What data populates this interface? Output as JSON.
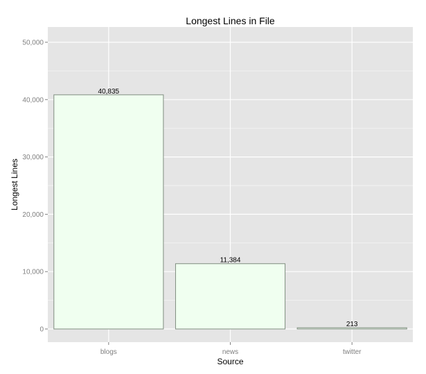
{
  "chart_data": {
    "type": "bar",
    "title": "Longest Lines in File",
    "xlabel": "Source",
    "ylabel": "Longest Lines",
    "categories": [
      "blogs",
      "news",
      "twitter"
    ],
    "values": [
      40835,
      11384,
      213
    ],
    "data_labels": [
      "40,835",
      "11,384",
      "213"
    ],
    "ylim": [
      0,
      52000
    ],
    "y_ticks": [
      0,
      10000,
      20000,
      30000,
      40000,
      50000
    ],
    "y_tick_labels": [
      "0",
      "10,000",
      "20,000",
      "30,000",
      "40,000",
      "50,000"
    ],
    "grid": true,
    "legend": "none",
    "colors": {
      "panel_background": "#e5e5e5",
      "grid_major": "#ffffff",
      "grid_minor": "#f2f2f2",
      "bar_fill": "#f0fff0",
      "bar_outline": "#7f8c7f",
      "tick_text": "#7f7f7f"
    }
  }
}
